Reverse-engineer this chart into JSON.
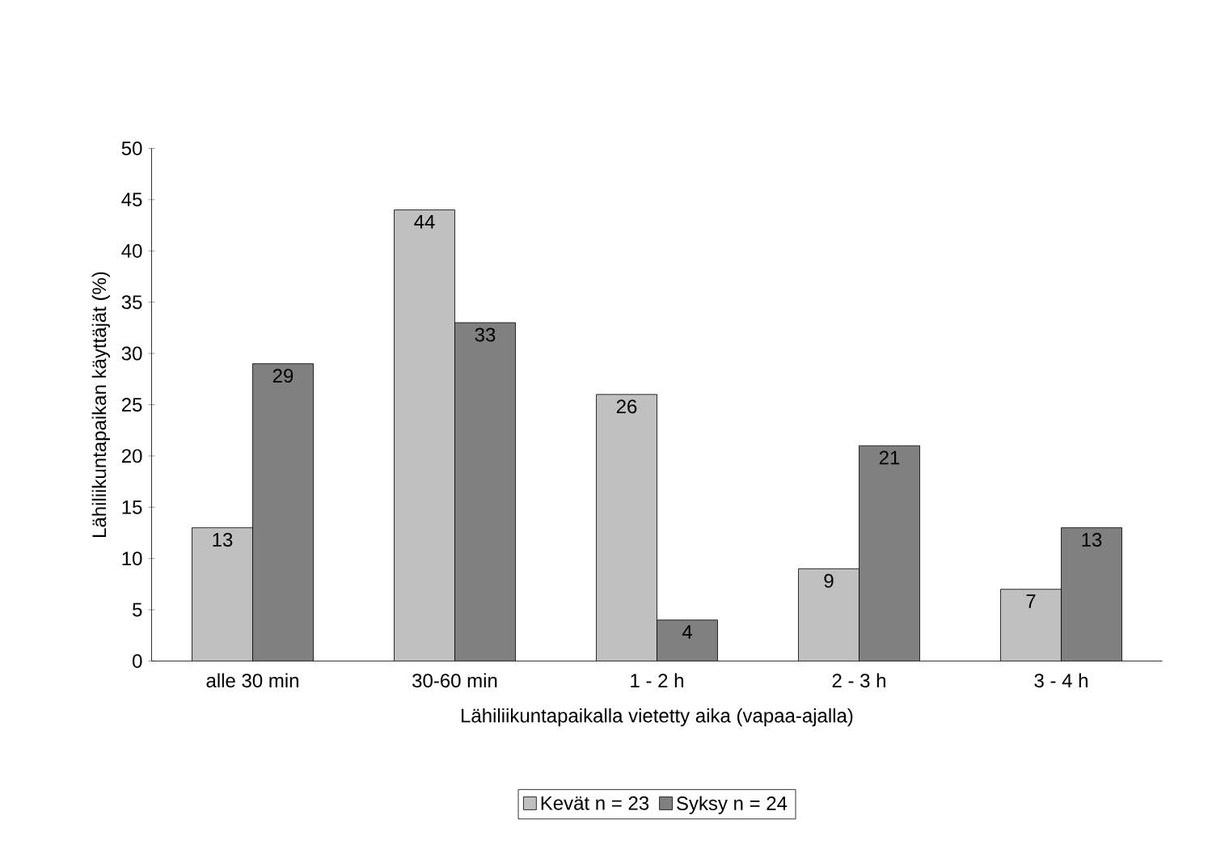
{
  "chart_data": {
    "type": "bar",
    "xlabel": "Lähiliikuntapaikalla vietetty aika (vapaa-ajalla)",
    "ylabel": "Lähiliikuntapaikan käyttäjät (%)",
    "categories": [
      "alle 30 min",
      "30-60 min",
      "1 - 2 h",
      "2 - 3 h",
      "3 - 4 h"
    ],
    "series": [
      {
        "name": "Kevät n = 23",
        "color": "#c0c0c0",
        "values": [
          13,
          44,
          26,
          9,
          7
        ]
      },
      {
        "name": "Syksy n = 24",
        "color": "#808080",
        "values": [
          29,
          33,
          4,
          21,
          13
        ]
      }
    ],
    "ylim": [
      0,
      50
    ],
    "yticks": [
      0,
      5,
      10,
      15,
      20,
      25,
      30,
      35,
      40,
      45,
      50
    ],
    "data_labels": true,
    "legend": "bottom",
    "grid": false
  }
}
